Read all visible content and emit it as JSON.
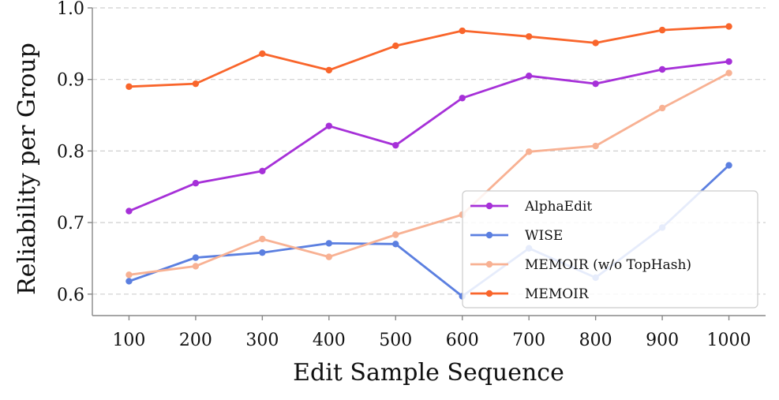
{
  "chart_data": {
    "type": "line",
    "xlabel": "Edit Sample Sequence",
    "ylabel": "Reliability per Group",
    "x": [
      100,
      200,
      300,
      400,
      500,
      600,
      700,
      800,
      900,
      1000
    ],
    "x_tick_labels": [
      "100",
      "200",
      "300",
      "400",
      "500",
      "600",
      "700",
      "800",
      "900",
      "1000"
    ],
    "y_ticks": [
      0.6,
      0.7,
      0.8,
      0.9,
      1.0
    ],
    "y_tick_labels": [
      "0.6",
      "0.7",
      "0.8",
      "0.9",
      "1.0"
    ],
    "xlim": [
      45,
      1055
    ],
    "ylim": [
      0.57,
      1.0
    ],
    "grid": "y-dashed",
    "legend_position": "lower-right",
    "series": [
      {
        "name": "AlphaEdit",
        "color": "#a630d8",
        "values": [
          0.716,
          0.755,
          0.772,
          0.835,
          0.808,
          0.874,
          0.905,
          0.894,
          0.914,
          0.925
        ]
      },
      {
        "name": "WISE",
        "color": "#5b7fe0",
        "values": [
          0.618,
          0.651,
          0.658,
          0.671,
          0.67,
          0.597,
          0.664,
          0.623,
          0.693,
          0.78
        ]
      },
      {
        "name": "MEMOIR (w/o TopHash)",
        "color": "#f8b193",
        "values": [
          0.627,
          0.639,
          0.677,
          0.652,
          0.683,
          0.711,
          0.799,
          0.807,
          0.86,
          0.909
        ]
      },
      {
        "name": "MEMOIR",
        "color": "#f9652b",
        "values": [
          0.89,
          0.894,
          0.936,
          0.913,
          0.947,
          0.968,
          0.96,
          0.951,
          0.969,
          0.974
        ]
      }
    ]
  }
}
